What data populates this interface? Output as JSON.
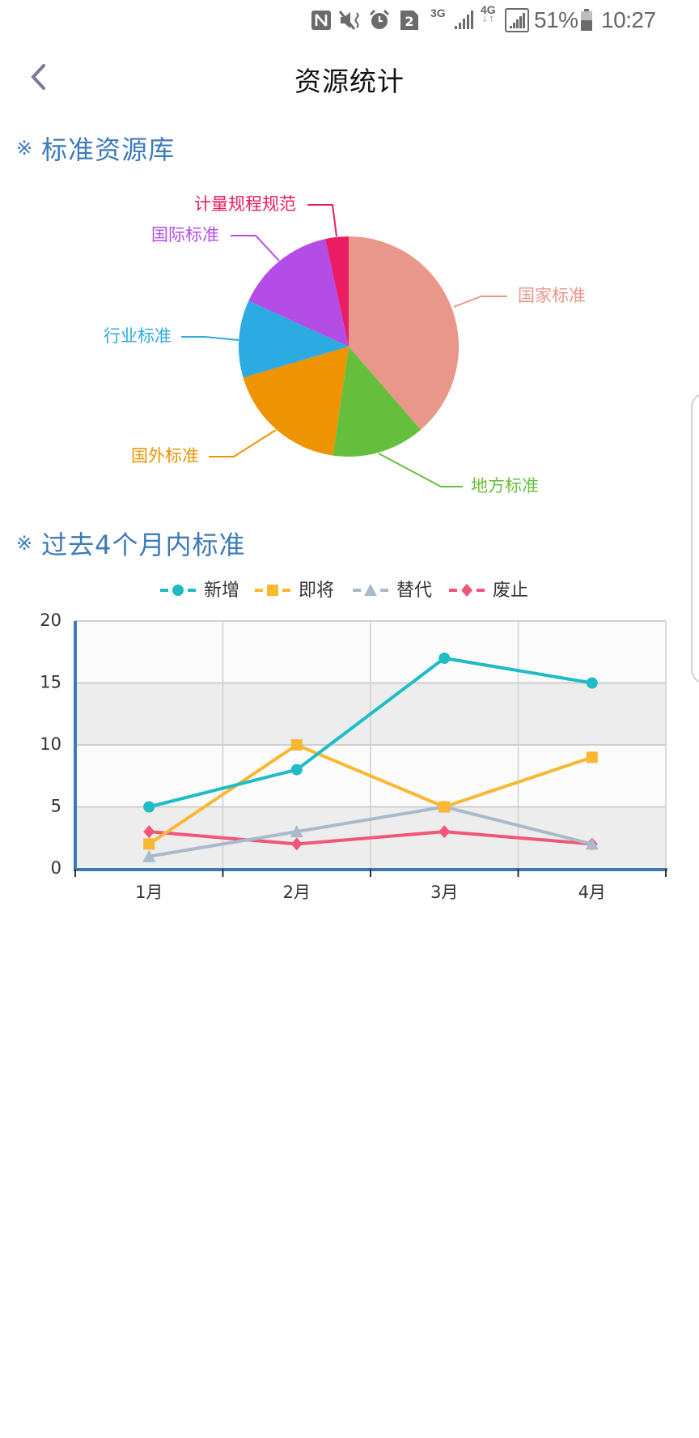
{
  "status_bar": {
    "icons": [
      "nfc-icon",
      "vibrate-icon",
      "alarm-icon",
      "sim-2-icon",
      "3g-signal-icon",
      "4g-signal-icon"
    ],
    "net_3g": "3G",
    "net_4g": "4G",
    "sim": "2",
    "battery": "51%",
    "time": "10:27"
  },
  "header": {
    "back_icon": "chevron-left-icon",
    "title": "资源统计"
  },
  "sections": [
    {
      "mark": "※",
      "title": "标准资源库"
    },
    {
      "mark": "※",
      "title": "过去4个月内标准"
    }
  ],
  "chart_data": [
    {
      "type": "pie",
      "title": "标准资源库",
      "categories": [
        "国家标准",
        "地方标准",
        "国外标准",
        "行业标准",
        "国际标准",
        "计量规程规范"
      ],
      "values": [
        34,
        12,
        16,
        10,
        13,
        3
      ],
      "colors": [
        "#E8978A",
        "#66BF3C",
        "#EE9302",
        "#2CAAE2",
        "#B34DE5",
        "#E91D63"
      ],
      "start_angle": "12 o'clock, clockwise",
      "labels_position": "outside with leader lines"
    },
    {
      "type": "line",
      "title": "过去4个月内标准",
      "categories": [
        "1月",
        "2月",
        "3月",
        "4月"
      ],
      "series": [
        {
          "name": "新增",
          "values": [
            5,
            8,
            17,
            15
          ],
          "color": "#1FBCC7",
          "marker": "circle"
        },
        {
          "name": "即将",
          "values": [
            2,
            10,
            5,
            9
          ],
          "color": "#F9B732",
          "marker": "square"
        },
        {
          "name": "替代",
          "values": [
            1,
            3,
            5,
            2
          ],
          "color": "#A9BACB",
          "marker": "triangle"
        },
        {
          "name": "废止",
          "values": [
            3,
            2,
            3,
            2
          ],
          "color": "#F0567A",
          "marker": "diamond"
        }
      ],
      "xlabel": "",
      "ylabel": "",
      "ylim": [
        0,
        20
      ],
      "yticks": [
        "0",
        "5",
        "10",
        "15",
        "20"
      ],
      "grid": true,
      "legend_position": "top-center",
      "axis_color": "#3D7AB5",
      "band_colors": [
        "#EDEDED",
        "#FBFBFB"
      ]
    }
  ]
}
